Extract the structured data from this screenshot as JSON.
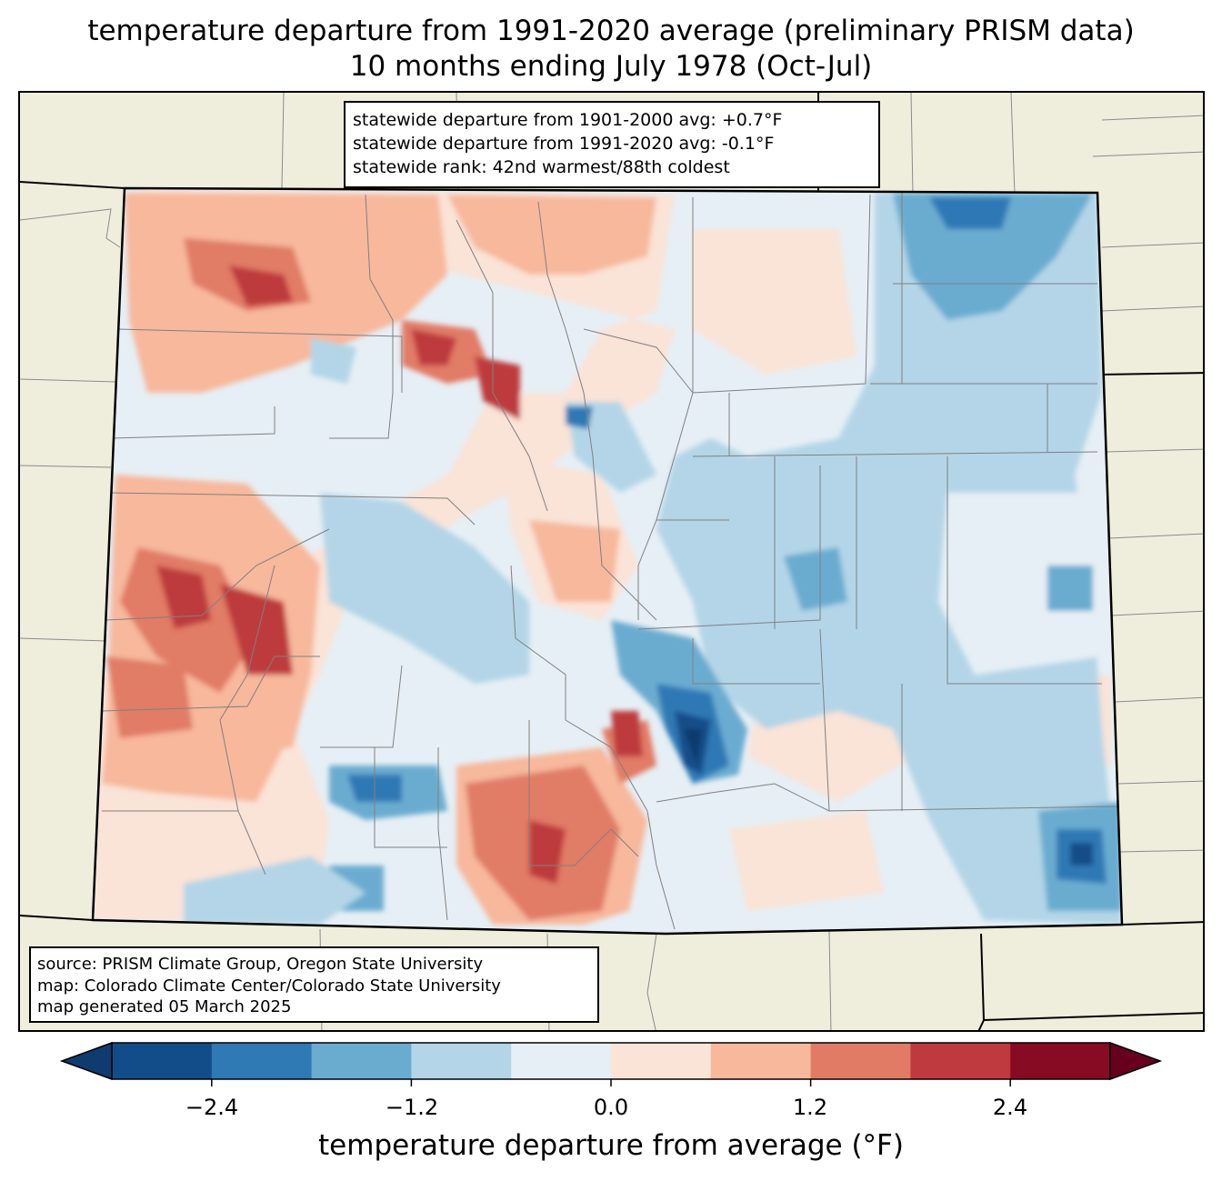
{
  "title": {
    "line1": "temperature departure from 1991-2020 average (preliminary PRISM data)",
    "line2": "10 months ending July 1978 (Oct-Jul)"
  },
  "stats": {
    "departure_1901_2000": "statewide departure from 1901-2000 avg: +0.7°F",
    "departure_1991_2020": "statewide departure from 1991-2020 avg: -0.1°F",
    "rank": "statewide rank: 42nd warmest/88th coldest"
  },
  "credits": {
    "source": "source: PRISM Climate Group, Oregon State University",
    "map": "map: Colorado Climate Center/Colorado State University",
    "generated": "map generated 05 March 2025"
  },
  "colorbar": {
    "label": "temperature departure from average (°F)",
    "ticks": [
      "−2.4",
      "−1.2",
      "0.0",
      "1.2",
      "2.4"
    ],
    "levels": [
      -3.0,
      -2.4,
      -1.8,
      -1.2,
      -0.6,
      0.0,
      0.6,
      1.2,
      1.8,
      2.4,
      3.0
    ],
    "colors": [
      "#0f3b6f",
      "#134d89",
      "#2f79b5",
      "#6aacd0",
      "#b3d5e7",
      "#e6eff5",
      "#fae3d7",
      "#f7b89c",
      "#e17b66",
      "#be3a3e",
      "#870b22",
      "#67001f"
    ]
  },
  "map": {
    "background": "#efeedd",
    "state_outline": "#000000",
    "county_lines": "#808080"
  }
}
